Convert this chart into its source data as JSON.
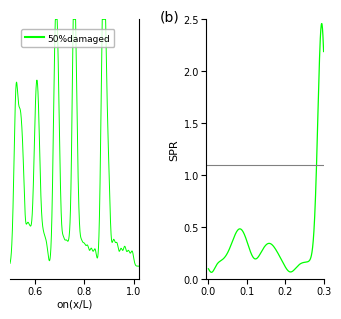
{
  "left_panel": {
    "xlabel": "on(x/L)",
    "legend_label": "50%damaged",
    "legend_color": "#00ff00",
    "xlim": [
      0.5,
      1.02
    ],
    "ylim": [
      0.0,
      1.25
    ],
    "x_ticks": [
      0.6,
      0.8,
      1.0
    ],
    "line_color": "#00ff00",
    "background_color": "#ffffff"
  },
  "right_panel": {
    "label_b": "(b)",
    "ylabel": "SPR",
    "xlabel": "",
    "xlim": [
      -0.005,
      0.3
    ],
    "ylim": [
      0.0,
      2.5
    ],
    "x_ticks": [
      0.0,
      0.1,
      0.2,
      0.3
    ],
    "y_ticks": [
      0.0,
      0.5,
      1.0,
      1.5,
      2.0,
      2.5
    ],
    "hline_y": 1.1,
    "hline_color": "#808080",
    "line_color": "#00ff00",
    "background_color": "#ffffff"
  },
  "fig_bg": "#ffffff"
}
